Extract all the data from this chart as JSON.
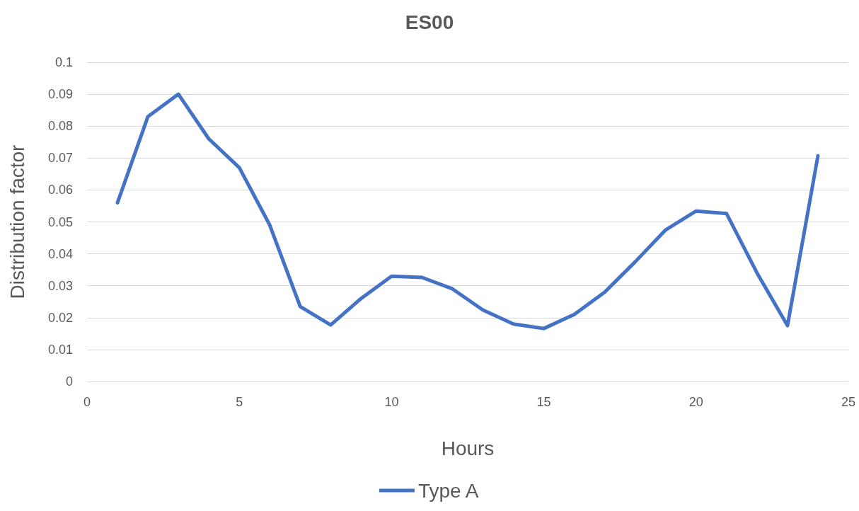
{
  "chart_data": {
    "type": "line",
    "title": "ES00",
    "xlabel": "Hours",
    "ylabel": "Distribution factor",
    "x": [
      1,
      2,
      3,
      4,
      5,
      6,
      7,
      8,
      9,
      10,
      11,
      12,
      13,
      14,
      15,
      16,
      17,
      18,
      19,
      20,
      21,
      22,
      23,
      24
    ],
    "series": [
      {
        "name": "Type A",
        "color": "#4472c4",
        "values": [
          0.056,
          0.083,
          0.09,
          0.076,
          0.067,
          0.049,
          0.0235,
          0.0177,
          0.026,
          0.033,
          0.0326,
          0.029,
          0.0224,
          0.018,
          0.0166,
          0.021,
          0.028,
          0.0375,
          0.0475,
          0.0534,
          0.0526,
          0.034,
          0.0175,
          0.0707
        ]
      }
    ],
    "xlim": [
      0,
      25
    ],
    "xticks": [
      0,
      5,
      10,
      15,
      20,
      25
    ],
    "ylim": [
      0,
      0.1
    ],
    "yticks": [
      0,
      0.01,
      0.02,
      0.03,
      0.04,
      0.05,
      0.06,
      0.07,
      0.08,
      0.09,
      0.1
    ],
    "grid": "y",
    "legend": "bottom",
    "marker": "none",
    "line_style": "solid"
  }
}
